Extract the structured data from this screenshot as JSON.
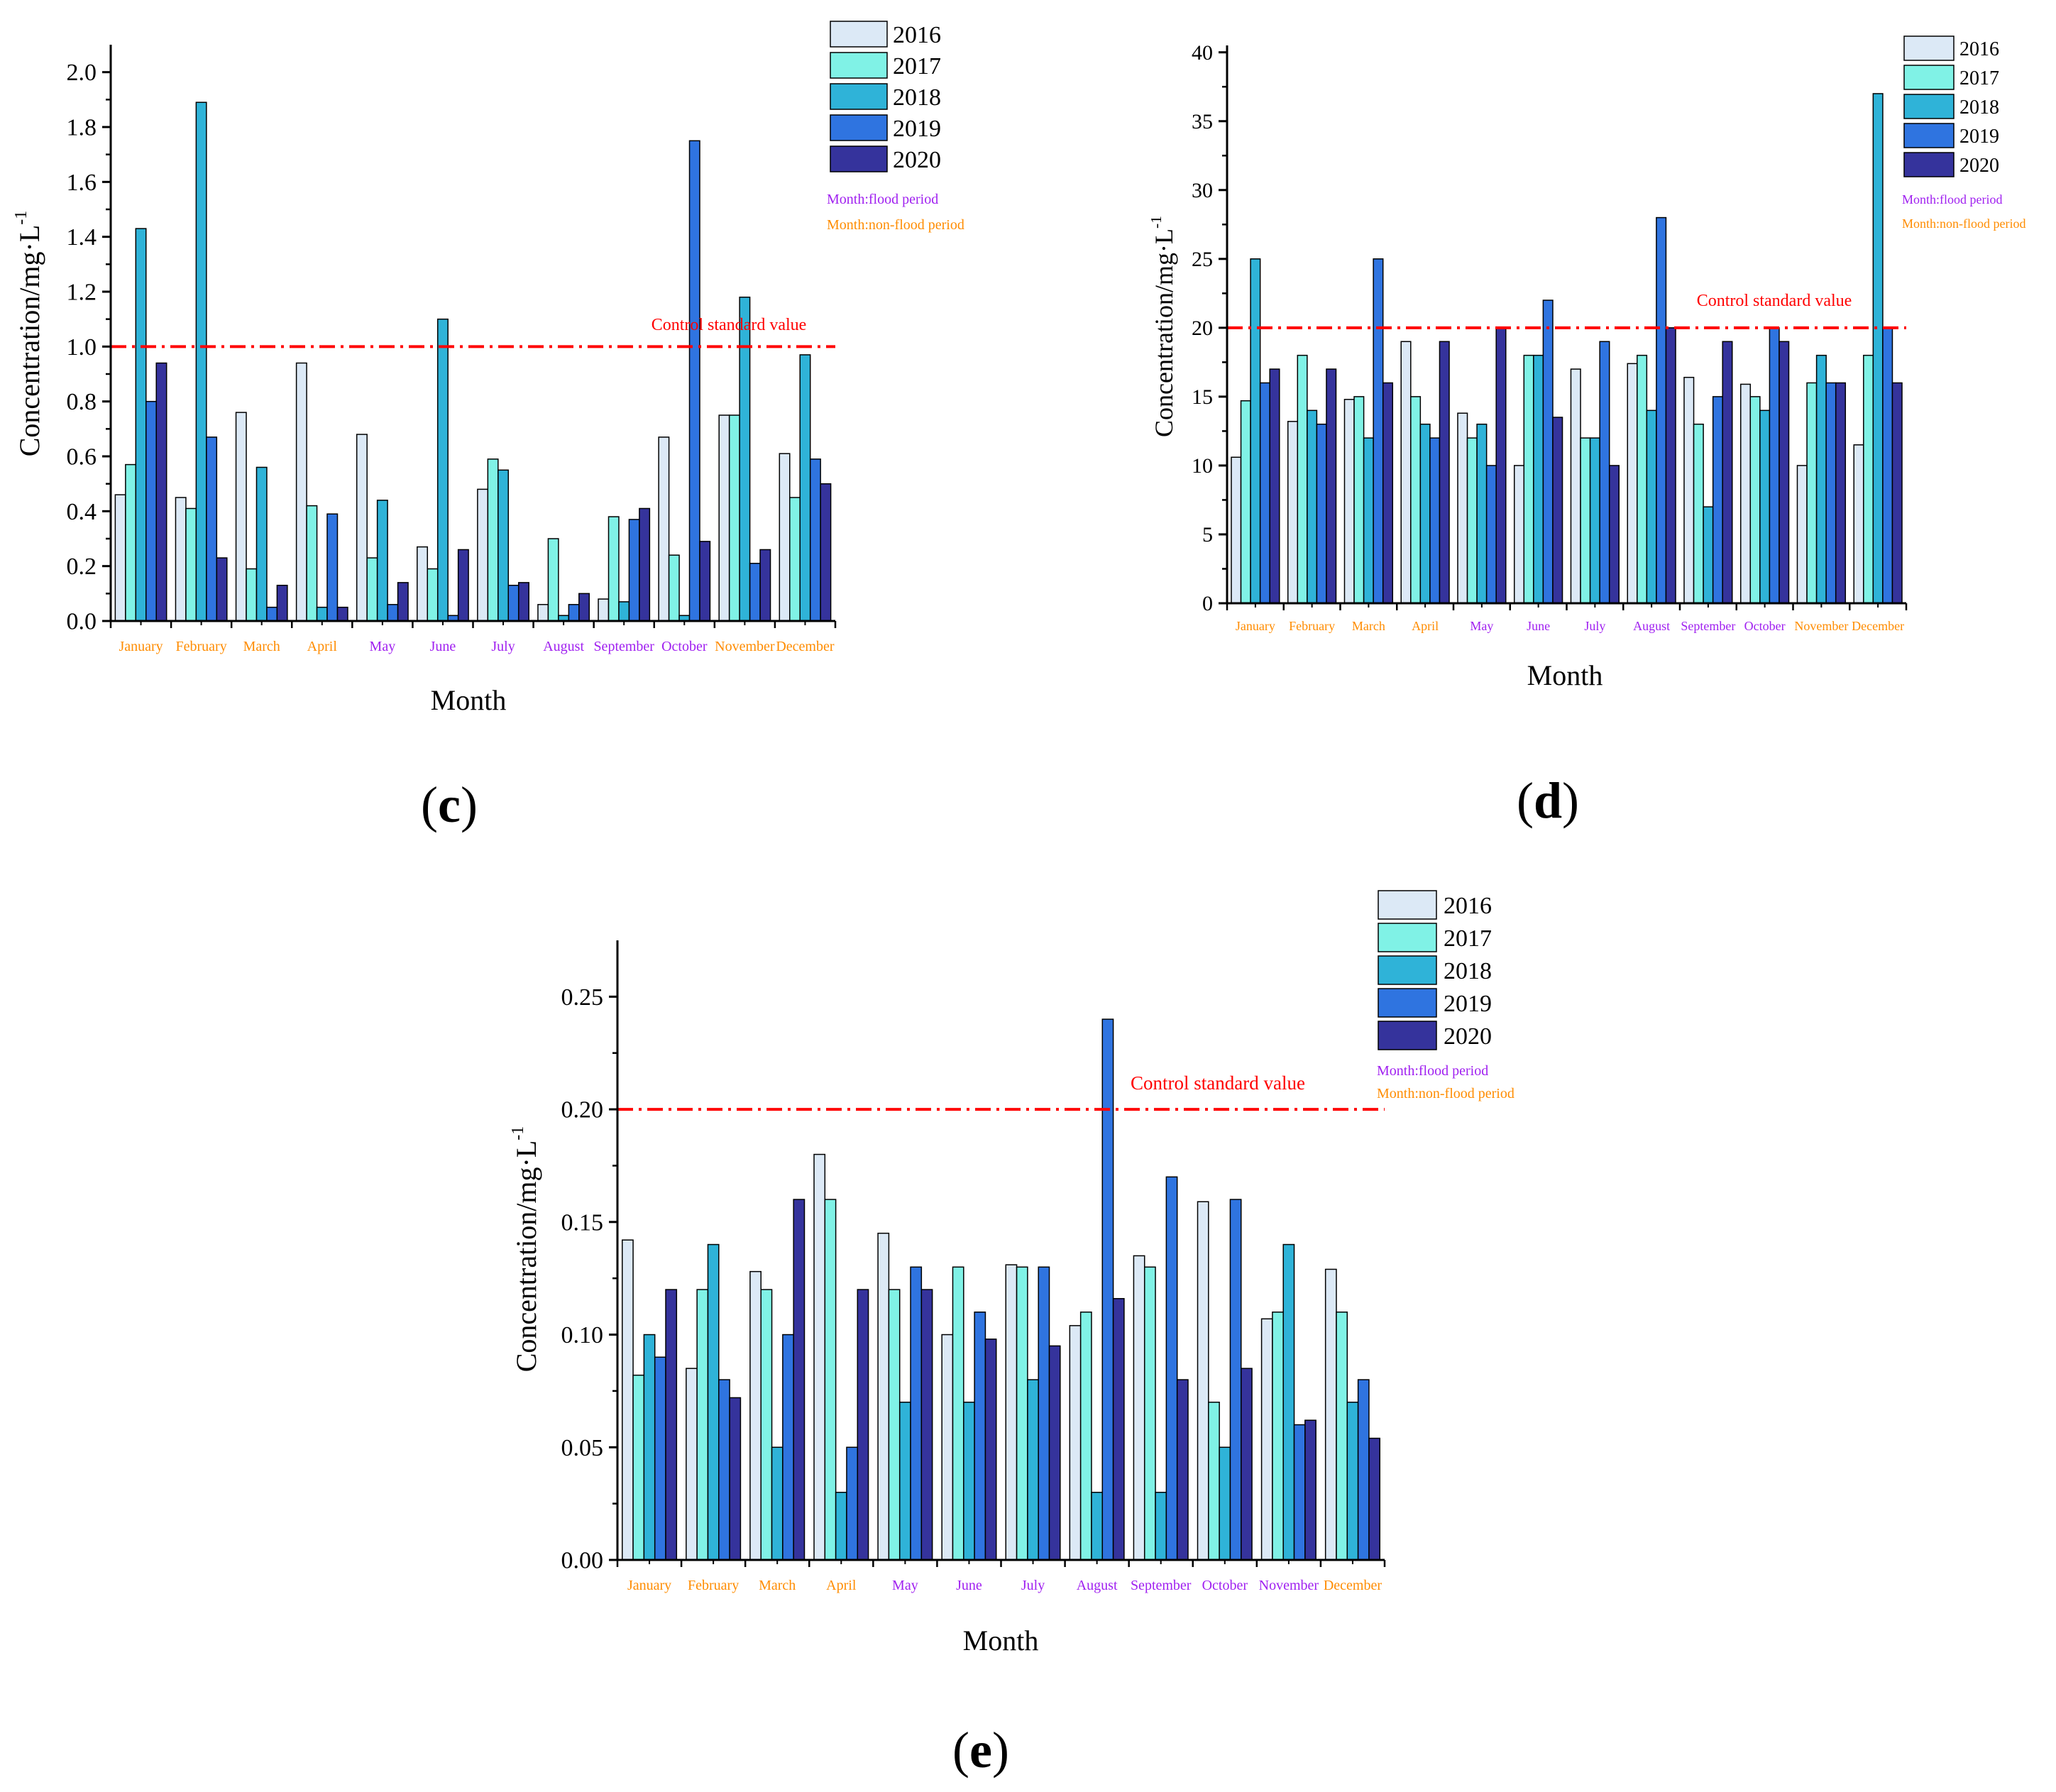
{
  "colors": {
    "series": [
      "#dce9f6",
      "#80f2e6",
      "#2fb3d8",
      "#2f74e0",
      "#35339c"
    ],
    "flood": "#a020f0",
    "non_flood": "#ff8c00",
    "control_line": "#ff0000",
    "axis": "#000000"
  },
  "chart_data": [
    {
      "type": "bar",
      "panel_label": "(c)",
      "xlabel": "Month",
      "ylabel": "Concentration/mg·L",
      "ylabel_sup": "-1",
      "ylim": [
        0,
        2.1
      ],
      "yticks": [
        0.0,
        0.2,
        0.4,
        0.6,
        0.8,
        1.0,
        1.2,
        1.4,
        1.6,
        1.8,
        2.0
      ],
      "tick_decimals": 1,
      "categories": [
        "January",
        "February",
        "March",
        "April",
        "May",
        "June",
        "July",
        "August",
        "September",
        "October",
        "November",
        "December"
      ],
      "category_period": [
        "non-flood",
        "non-flood",
        "non-flood",
        "non-flood",
        "flood",
        "flood",
        "flood",
        "flood",
        "flood",
        "flood",
        "non-flood",
        "non-flood"
      ],
      "series": [
        {
          "name": "2016",
          "values": [
            0.46,
            0.45,
            0.76,
            0.94,
            0.68,
            0.27,
            0.48,
            0.06,
            0.08,
            0.67,
            0.75,
            0.61
          ]
        },
        {
          "name": "2017",
          "values": [
            0.57,
            0.41,
            0.19,
            0.42,
            0.23,
            0.19,
            0.59,
            0.3,
            0.38,
            0.24,
            0.75,
            0.45
          ]
        },
        {
          "name": "2018",
          "values": [
            1.43,
            1.89,
            0.56,
            0.05,
            0.44,
            1.1,
            0.55,
            0.02,
            0.07,
            0.02,
            1.18,
            0.97
          ]
        },
        {
          "name": "2019",
          "values": [
            0.8,
            0.67,
            0.05,
            0.39,
            0.06,
            0.02,
            0.13,
            0.06,
            0.37,
            1.75,
            0.21,
            0.59
          ]
        },
        {
          "name": "2020",
          "values": [
            0.94,
            0.23,
            0.13,
            0.05,
            0.14,
            0.26,
            0.14,
            0.1,
            0.41,
            0.29,
            0.26,
            0.5
          ]
        }
      ],
      "control_value": 1.0,
      "control_label": "Control standard value",
      "legend_notes": [
        "Month:flood period",
        "Month:non-flood period"
      ]
    },
    {
      "type": "bar",
      "panel_label": "(d)",
      "xlabel": "Month",
      "ylabel": "Concentration/mg·L",
      "ylabel_sup": "-1",
      "ylim": [
        0,
        40.5
      ],
      "yticks": [
        0,
        5,
        10,
        15,
        20,
        25,
        30,
        35,
        40
      ],
      "tick_decimals": 0,
      "categories": [
        "January",
        "February",
        "March",
        "April",
        "May",
        "June",
        "July",
        "August",
        "September",
        "October",
        "November",
        "December"
      ],
      "category_period": [
        "non-flood",
        "non-flood",
        "non-flood",
        "non-flood",
        "flood",
        "flood",
        "flood",
        "flood",
        "flood",
        "flood",
        "non-flood",
        "non-flood"
      ],
      "series": [
        {
          "name": "2016",
          "values": [
            10.6,
            13.2,
            14.8,
            19.0,
            13.8,
            10.0,
            17.0,
            17.4,
            16.4,
            15.9,
            10.0,
            11.5
          ]
        },
        {
          "name": "2017",
          "values": [
            14.7,
            18.0,
            15.0,
            15.0,
            12.0,
            18.0,
            12.0,
            18.0,
            13.0,
            15.0,
            16.0,
            18.0
          ]
        },
        {
          "name": "2018",
          "values": [
            25.0,
            14.0,
            12.0,
            13.0,
            13.0,
            18.0,
            12.0,
            14.0,
            7.0,
            14.0,
            18.0,
            37.0
          ]
        },
        {
          "name": "2019",
          "values": [
            16.0,
            13.0,
            25.0,
            12.0,
            10.0,
            22.0,
            19.0,
            28.0,
            15.0,
            20.0,
            16.0,
            20.0
          ]
        },
        {
          "name": "2020",
          "values": [
            17.0,
            17.0,
            16.0,
            19.0,
            20.0,
            13.5,
            10.0,
            20.0,
            19.0,
            19.0,
            16.0,
            16.0
          ]
        }
      ],
      "control_value": 20,
      "control_label": "Control standard value",
      "legend_notes": [
        "Month:flood period",
        "Month:non-flood period"
      ]
    },
    {
      "type": "bar",
      "panel_label": "(e)",
      "xlabel": "Month",
      "ylabel": "Concentration/mg·L",
      "ylabel_sup": "-1",
      "ylim": [
        0,
        0.275
      ],
      "yticks": [
        0.0,
        0.05,
        0.1,
        0.15,
        0.2,
        0.25
      ],
      "tick_decimals": 2,
      "categories": [
        "January",
        "February",
        "March",
        "April",
        "May",
        "June",
        "July",
        "August",
        "September",
        "October",
        "November",
        "December"
      ],
      "category_period": [
        "non-flood",
        "non-flood",
        "non-flood",
        "non-flood",
        "flood",
        "flood",
        "flood",
        "flood",
        "flood",
        "flood",
        "flood",
        "non-flood"
      ],
      "series": [
        {
          "name": "2016",
          "values": [
            0.142,
            0.085,
            0.128,
            0.18,
            0.145,
            0.1,
            0.131,
            0.104,
            0.135,
            0.159,
            0.107,
            0.129
          ]
        },
        {
          "name": "2017",
          "values": [
            0.082,
            0.12,
            0.12,
            0.16,
            0.12,
            0.13,
            0.13,
            0.11,
            0.13,
            0.07,
            0.11,
            0.11
          ]
        },
        {
          "name": "2018",
          "values": [
            0.1,
            0.14,
            0.05,
            0.03,
            0.07,
            0.07,
            0.08,
            0.03,
            0.03,
            0.05,
            0.14,
            0.07
          ]
        },
        {
          "name": "2019",
          "values": [
            0.09,
            0.08,
            0.1,
            0.05,
            0.13,
            0.11,
            0.13,
            0.24,
            0.17,
            0.16,
            0.06,
            0.08
          ]
        },
        {
          "name": "2020",
          "values": [
            0.12,
            0.072,
            0.16,
            0.12,
            0.12,
            0.098,
            0.095,
            0.116,
            0.08,
            0.085,
            0.062,
            0.054
          ]
        }
      ],
      "control_value": 0.2,
      "control_label": "Control standard value",
      "legend_notes": [
        "Month:flood period",
        "Month:non-flood period"
      ]
    }
  ]
}
